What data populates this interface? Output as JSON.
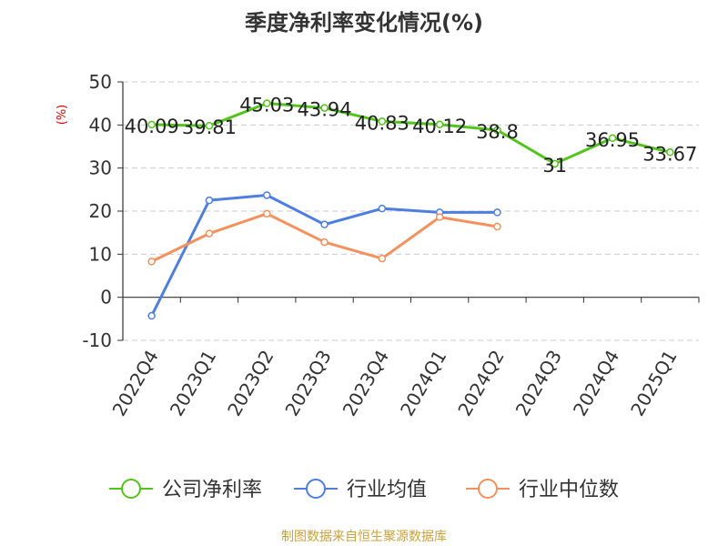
{
  "chart_data": {
    "type": "line",
    "title": "季度净利率变化情况(%)",
    "ylabel": "(%)",
    "xlabel": "",
    "ylim": [
      -10,
      50
    ],
    "yticks": [
      -10,
      0,
      10,
      20,
      30,
      40,
      50
    ],
    "grid": true,
    "legend_position": "bottom",
    "categories": [
      "2022Q4",
      "2023Q1",
      "2023Q2",
      "2023Q3",
      "2023Q4",
      "2024Q1",
      "2024Q2",
      "2024Q3",
      "2024Q4",
      "2025Q1"
    ],
    "series": [
      {
        "name": "公司净利率",
        "color": "#52c41a",
        "values": [
          40.09,
          39.81,
          45.03,
          43.94,
          40.83,
          40.12,
          38.8,
          31,
          36.95,
          33.67
        ],
        "labels": [
          "40.09",
          "39.81",
          "45.03",
          "43.94",
          "40.83",
          "40.12",
          "38.8",
          "31",
          "36.95",
          "33.67"
        ]
      },
      {
        "name": "行业均值",
        "color": "#4e7fe0",
        "values": [
          -4.3,
          22.5,
          23.7,
          16.9,
          20.6,
          19.7,
          19.7,
          null,
          null,
          null
        ]
      },
      {
        "name": "行业中位数",
        "color": "#f5915c",
        "values": [
          8.3,
          14.8,
          19.4,
          12.8,
          9.0,
          18.6,
          16.4,
          null,
          null,
          null
        ]
      }
    ],
    "source_note": "制图数据来自恒生聚源数据库",
    "colors": {
      "grid": "#cccccc",
      "axis": "#333333",
      "ylabel": "#e00000",
      "title": "#333333",
      "source": "#c8a23c"
    }
  }
}
